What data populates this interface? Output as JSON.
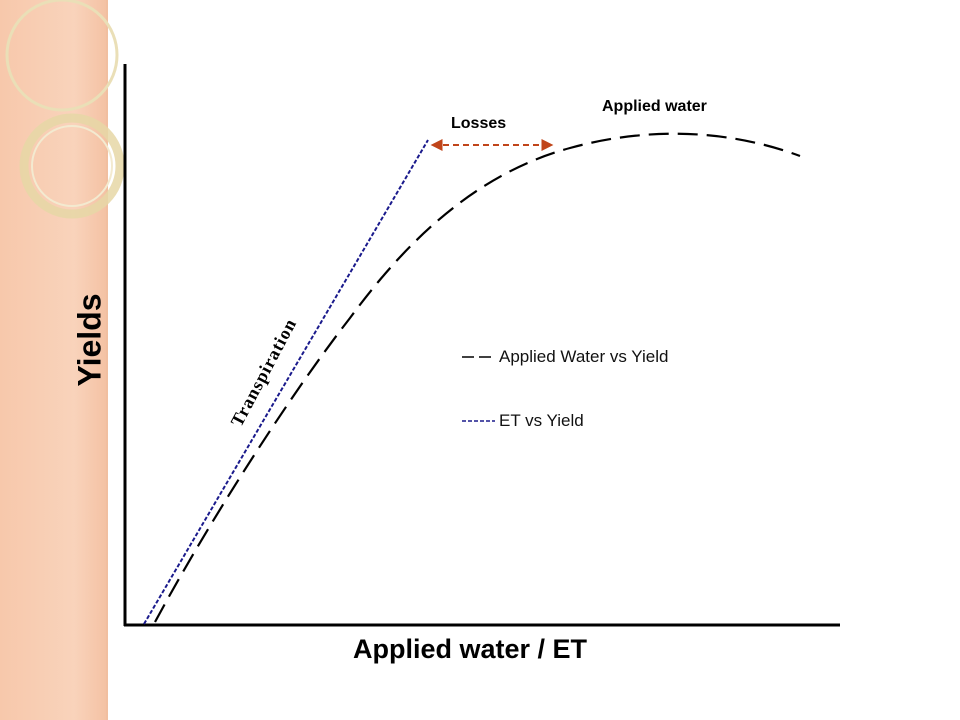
{
  "slide": {
    "accent_band_color": "#f8cdb2",
    "ring_color": "#e8d9a8"
  },
  "diagram": {
    "y_label": "Yields",
    "x_label": "Applied water / ET",
    "annotations": {
      "applied_water": "Applied water",
      "losses": "Losses",
      "transpiration": "Transpiration"
    },
    "legend": [
      {
        "label": "Applied Water vs Yield",
        "style": "long-dash",
        "color": "#000000"
      },
      {
        "label": "ET vs Yield",
        "style": "short-dash",
        "color": "#1a1a8c"
      }
    ],
    "colors": {
      "axis": "#000000",
      "applied_water_curve": "#000000",
      "et_line": "#1a1a8c",
      "losses_arrow": "#c0451a"
    }
  }
}
